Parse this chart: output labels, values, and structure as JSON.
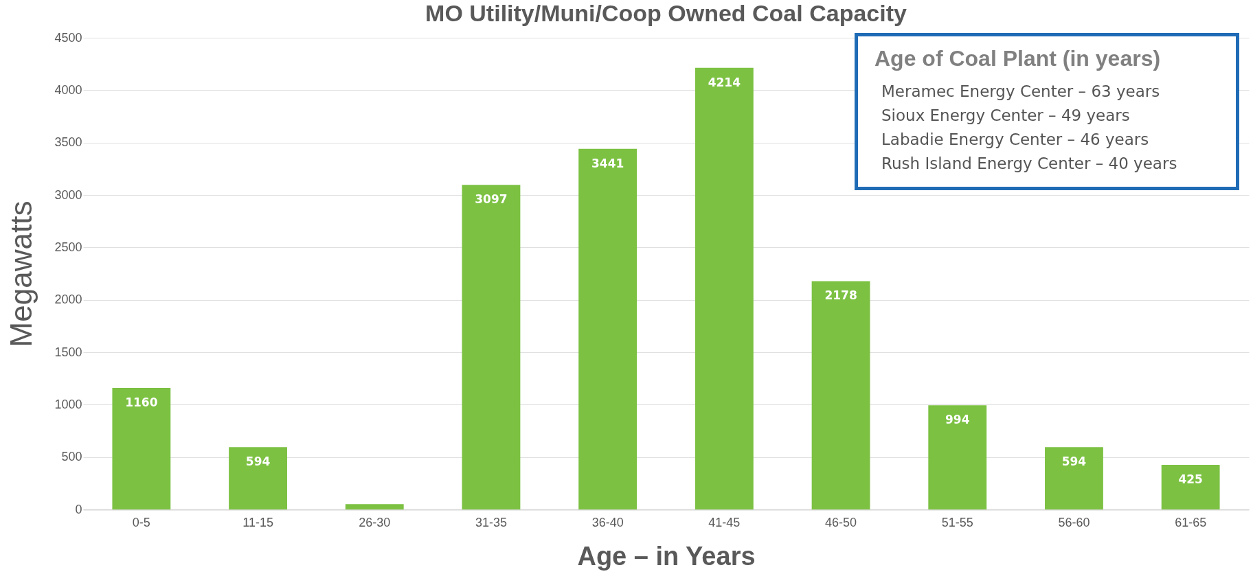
{
  "chart_data": {
    "type": "bar",
    "title": "MO Utility/Muni/Coop Owned Coal Capacity",
    "xlabel": "Age – in Years",
    "ylabel": "Megawatts",
    "categories": [
      "0-5",
      "11-15",
      "26-30",
      "31-35",
      "36-40",
      "41-45",
      "46-50",
      "51-55",
      "56-60",
      "61-65"
    ],
    "values": [
      1160,
      594,
      50,
      3097,
      3441,
      4214,
      2178,
      994,
      594,
      425
    ],
    "value_labels": [
      "1160",
      "594",
      null,
      "3097",
      "3441",
      "4214",
      "2178",
      "994",
      "594",
      "425"
    ],
    "color": "#7cc142",
    "ylim": [
      0,
      4500
    ],
    "yticks": [
      0,
      500,
      1000,
      1500,
      2000,
      2500,
      3000,
      3500,
      4000,
      4500
    ],
    "grid": "y",
    "annotations": [
      "Age of Coal Plant (in years)",
      "Meramec Energy Center – 63 years",
      "Sioux Energy Center – 49 years",
      "Labadie Energy Center – 46 years",
      "Rush Island Energy Center – 40 years"
    ]
  }
}
